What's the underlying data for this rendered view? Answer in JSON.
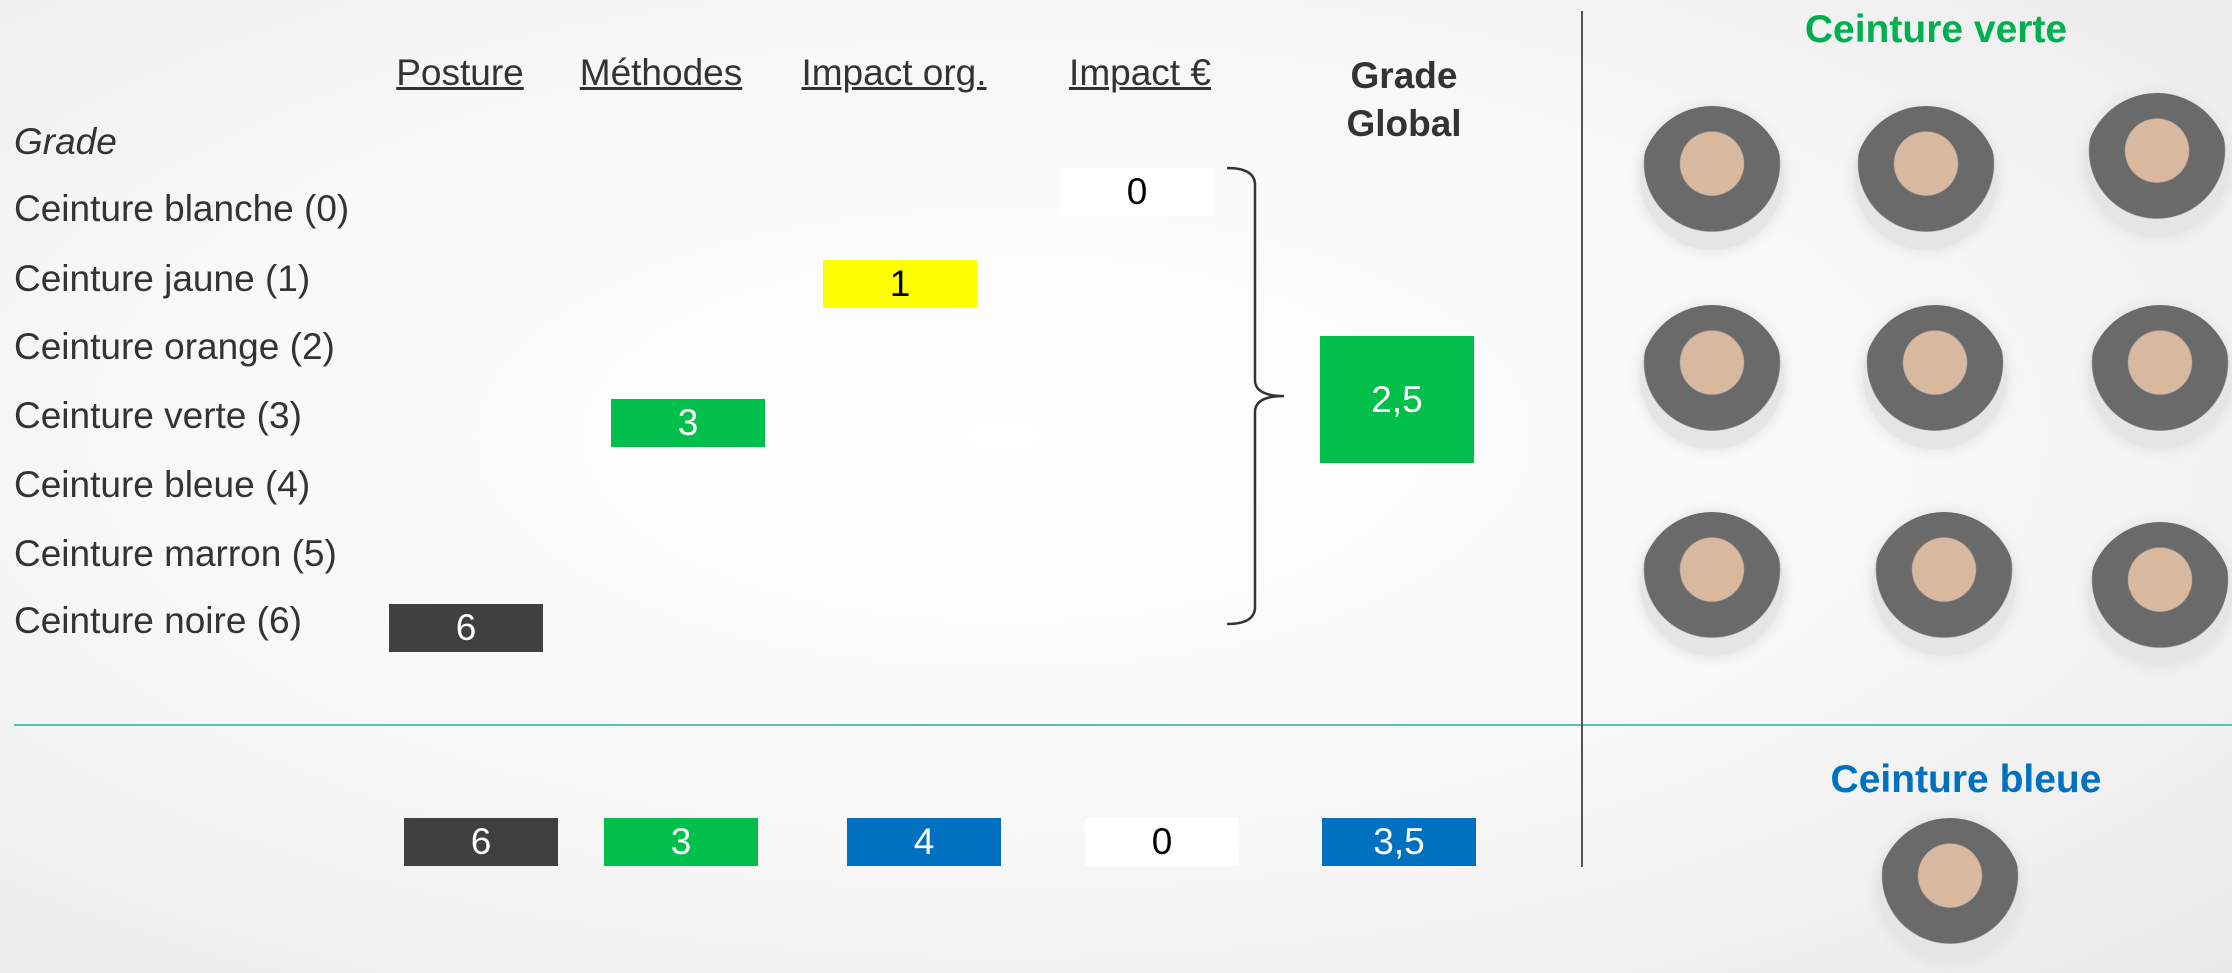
{
  "headers": [
    "Posture",
    "Méthodes",
    "Impact org.",
    "Impact €"
  ],
  "global_header": [
    "Grade",
    "Global"
  ],
  "grade_title": "Grade",
  "grades": [
    "Ceinture blanche (0)",
    "Ceinture jaune (1)",
    "Ceinture orange (2)",
    "Ceinture verte (3)",
    "Ceinture bleue (4)",
    "Ceinture marron (5)",
    "Ceinture noire (6)"
  ],
  "first_person": {
    "posture": "6",
    "methodes": "3",
    "impact_org": "1",
    "impact_eur": "0",
    "global": "2,5"
  },
  "second_person": {
    "posture": "6",
    "methodes": "3",
    "impact_org": "4",
    "impact_eur": "0",
    "global": "3,5"
  },
  "right_panel": {
    "top_title": "Ceinture verte",
    "bottom_title": "Ceinture bleue"
  }
}
